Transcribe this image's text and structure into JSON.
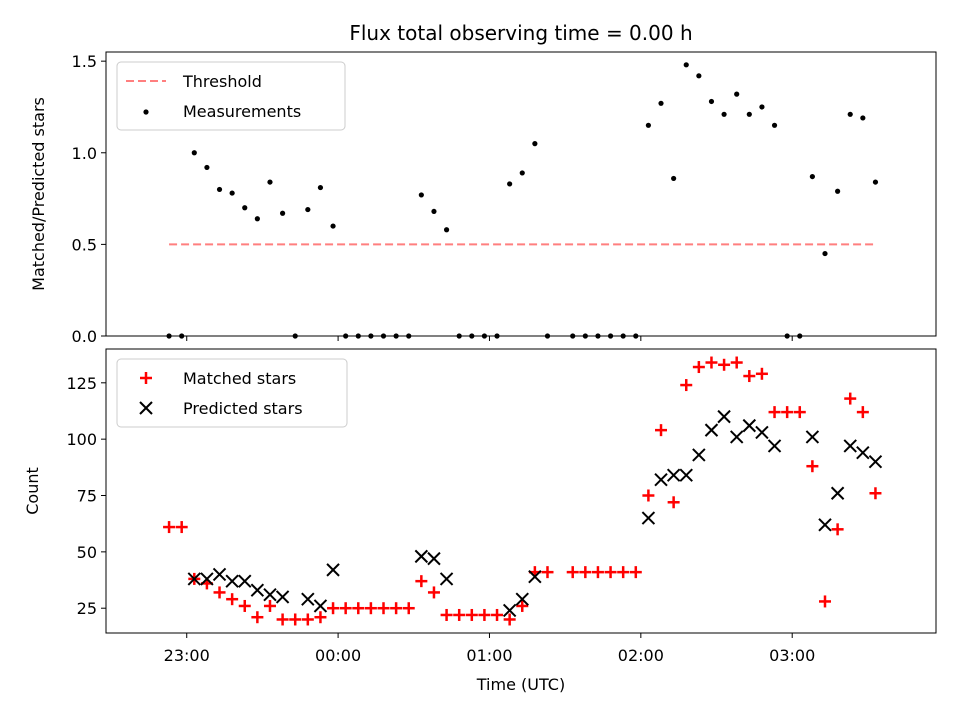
{
  "chart_data": {
    "type": "scatter",
    "title": "Flux total observing time = 0.00 h",
    "xlabel": "Time (UTC)",
    "x_ticks": [
      "23:00",
      "00:00",
      "01:00",
      "02:00",
      "03:00"
    ],
    "panels": [
      {
        "id": "ratio",
        "ylabel": "Matched/Predicted stars",
        "ylim": [
          0.0,
          1.55
        ],
        "y_ticks": [
          "0.0",
          "0.5",
          "1.0",
          "1.5"
        ],
        "y_tick_values": [
          0.0,
          0.5,
          1.0,
          1.5
        ],
        "legend_position": "upper-left",
        "threshold": {
          "name": "Threshold",
          "value": 0.5,
          "x_start": "22:53",
          "x_end": "03:33",
          "color": "#ff7f7f",
          "style": "dashed"
        },
        "series": [
          {
            "name": "Measurements",
            "marker": "dot",
            "color": "#000000",
            "points": [
              [
                "22:53",
                0.0
              ],
              [
                "22:58",
                0.0
              ],
              [
                "23:03",
                1.0
              ],
              [
                "23:08",
                0.92
              ],
              [
                "23:13",
                0.8
              ],
              [
                "23:18",
                0.78
              ],
              [
                "23:23",
                0.7
              ],
              [
                "23:28",
                0.64
              ],
              [
                "23:33",
                0.84
              ],
              [
                "23:38",
                0.67
              ],
              [
                "23:43",
                0.0
              ],
              [
                "23:48",
                0.69
              ],
              [
                "23:53",
                0.81
              ],
              [
                "23:58",
                0.6
              ],
              [
                "00:03",
                0.0
              ],
              [
                "00:08",
                0.0
              ],
              [
                "00:13",
                0.0
              ],
              [
                "00:18",
                0.0
              ],
              [
                "00:23",
                0.0
              ],
              [
                "00:28",
                0.0
              ],
              [
                "00:33",
                0.77
              ],
              [
                "00:38",
                0.68
              ],
              [
                "00:43",
                0.58
              ],
              [
                "00:48",
                0.0
              ],
              [
                "00:53",
                0.0
              ],
              [
                "00:58",
                0.0
              ],
              [
                "01:03",
                0.0
              ],
              [
                "01:08",
                0.83
              ],
              [
                "01:13",
                0.89
              ],
              [
                "01:18",
                1.05
              ],
              [
                "01:23",
                0.0
              ],
              [
                "01:33",
                0.0
              ],
              [
                "01:38",
                0.0
              ],
              [
                "01:43",
                0.0
              ],
              [
                "01:48",
                0.0
              ],
              [
                "01:53",
                0.0
              ],
              [
                "01:58",
                0.0
              ],
              [
                "02:03",
                1.15
              ],
              [
                "02:08",
                1.27
              ],
              [
                "02:13",
                0.86
              ],
              [
                "02:18",
                1.48
              ],
              [
                "02:23",
                1.42
              ],
              [
                "02:28",
                1.28
              ],
              [
                "02:33",
                1.21
              ],
              [
                "02:38",
                1.32
              ],
              [
                "02:43",
                1.21
              ],
              [
                "02:48",
                1.25
              ],
              [
                "02:53",
                1.15
              ],
              [
                "02:58",
                0.0
              ],
              [
                "03:03",
                0.0
              ],
              [
                "03:08",
                0.87
              ],
              [
                "03:13",
                0.45
              ],
              [
                "03:18",
                0.79
              ],
              [
                "03:23",
                1.21
              ],
              [
                "03:28",
                1.19
              ],
              [
                "03:33",
                0.84
              ]
            ]
          }
        ]
      },
      {
        "id": "counts",
        "ylabel": "Count",
        "ylim": [
          14,
          140
        ],
        "y_ticks": [
          "25",
          "50",
          "75",
          "100",
          "125"
        ],
        "y_tick_values": [
          25,
          50,
          75,
          100,
          125
        ],
        "legend_position": "upper-left",
        "series": [
          {
            "name": "Matched stars",
            "marker": "plus",
            "color": "#ff0000",
            "points": [
              [
                "22:53",
                61
              ],
              [
                "22:58",
                61
              ],
              [
                "23:03",
                38
              ],
              [
                "23:08",
                36
              ],
              [
                "23:13",
                32
              ],
              [
                "23:18",
                29
              ],
              [
                "23:23",
                26
              ],
              [
                "23:28",
                21
              ],
              [
                "23:33",
                26
              ],
              [
                "23:38",
                20
              ],
              [
                "23:43",
                20
              ],
              [
                "23:48",
                20
              ],
              [
                "23:53",
                21
              ],
              [
                "23:58",
                25
              ],
              [
                "00:03",
                25
              ],
              [
                "00:08",
                25
              ],
              [
                "00:13",
                25
              ],
              [
                "00:18",
                25
              ],
              [
                "00:23",
                25
              ],
              [
                "00:28",
                25
              ],
              [
                "00:33",
                37
              ],
              [
                "00:38",
                32
              ],
              [
                "00:43",
                22
              ],
              [
                "00:48",
                22
              ],
              [
                "00:53",
                22
              ],
              [
                "00:58",
                22
              ],
              [
                "01:03",
                22
              ],
              [
                "01:08",
                20
              ],
              [
                "01:13",
                26
              ],
              [
                "01:18",
                41
              ],
              [
                "01:23",
                41
              ],
              [
                "01:33",
                41
              ],
              [
                "01:38",
                41
              ],
              [
                "01:43",
                41
              ],
              [
                "01:48",
                41
              ],
              [
                "01:53",
                41
              ],
              [
                "01:58",
                41
              ],
              [
                "02:03",
                75
              ],
              [
                "02:08",
                104
              ],
              [
                "02:13",
                72
              ],
              [
                "02:18",
                124
              ],
              [
                "02:23",
                132
              ],
              [
                "02:28",
                134
              ],
              [
                "02:33",
                133
              ],
              [
                "02:38",
                134
              ],
              [
                "02:43",
                128
              ],
              [
                "02:48",
                129
              ],
              [
                "02:53",
                112
              ],
              [
                "02:58",
                112
              ],
              [
                "03:03",
                112
              ],
              [
                "03:08",
                88
              ],
              [
                "03:13",
                28
              ],
              [
                "03:18",
                60
              ],
              [
                "03:23",
                118
              ],
              [
                "03:28",
                112
              ],
              [
                "03:33",
                76
              ]
            ]
          },
          {
            "name": "Predicted stars",
            "marker": "x",
            "color": "#000000",
            "points": [
              [
                "23:03",
                38
              ],
              [
                "23:08",
                38
              ],
              [
                "23:13",
                40
              ],
              [
                "23:18",
                37
              ],
              [
                "23:23",
                37
              ],
              [
                "23:28",
                33
              ],
              [
                "23:33",
                31
              ],
              [
                "23:38",
                30
              ],
              [
                "23:48",
                29
              ],
              [
                "23:53",
                26
              ],
              [
                "23:58",
                42
              ],
              [
                "00:33",
                48
              ],
              [
                "00:38",
                47
              ],
              [
                "00:43",
                38
              ],
              [
                "01:08",
                24
              ],
              [
                "01:13",
                29
              ],
              [
                "01:18",
                39
              ],
              [
                "02:03",
                65
              ],
              [
                "02:08",
                82
              ],
              [
                "02:13",
                84
              ],
              [
                "02:18",
                84
              ],
              [
                "02:23",
                93
              ],
              [
                "02:28",
                104
              ],
              [
                "02:33",
                110
              ],
              [
                "02:38",
                101
              ],
              [
                "02:43",
                106
              ],
              [
                "02:48",
                103
              ],
              [
                "02:53",
                97
              ],
              [
                "03:08",
                101
              ],
              [
                "03:13",
                62
              ],
              [
                "03:18",
                76
              ],
              [
                "03:23",
                97
              ],
              [
                "03:28",
                94
              ],
              [
                "03:33",
                90
              ]
            ]
          }
        ]
      }
    ]
  }
}
